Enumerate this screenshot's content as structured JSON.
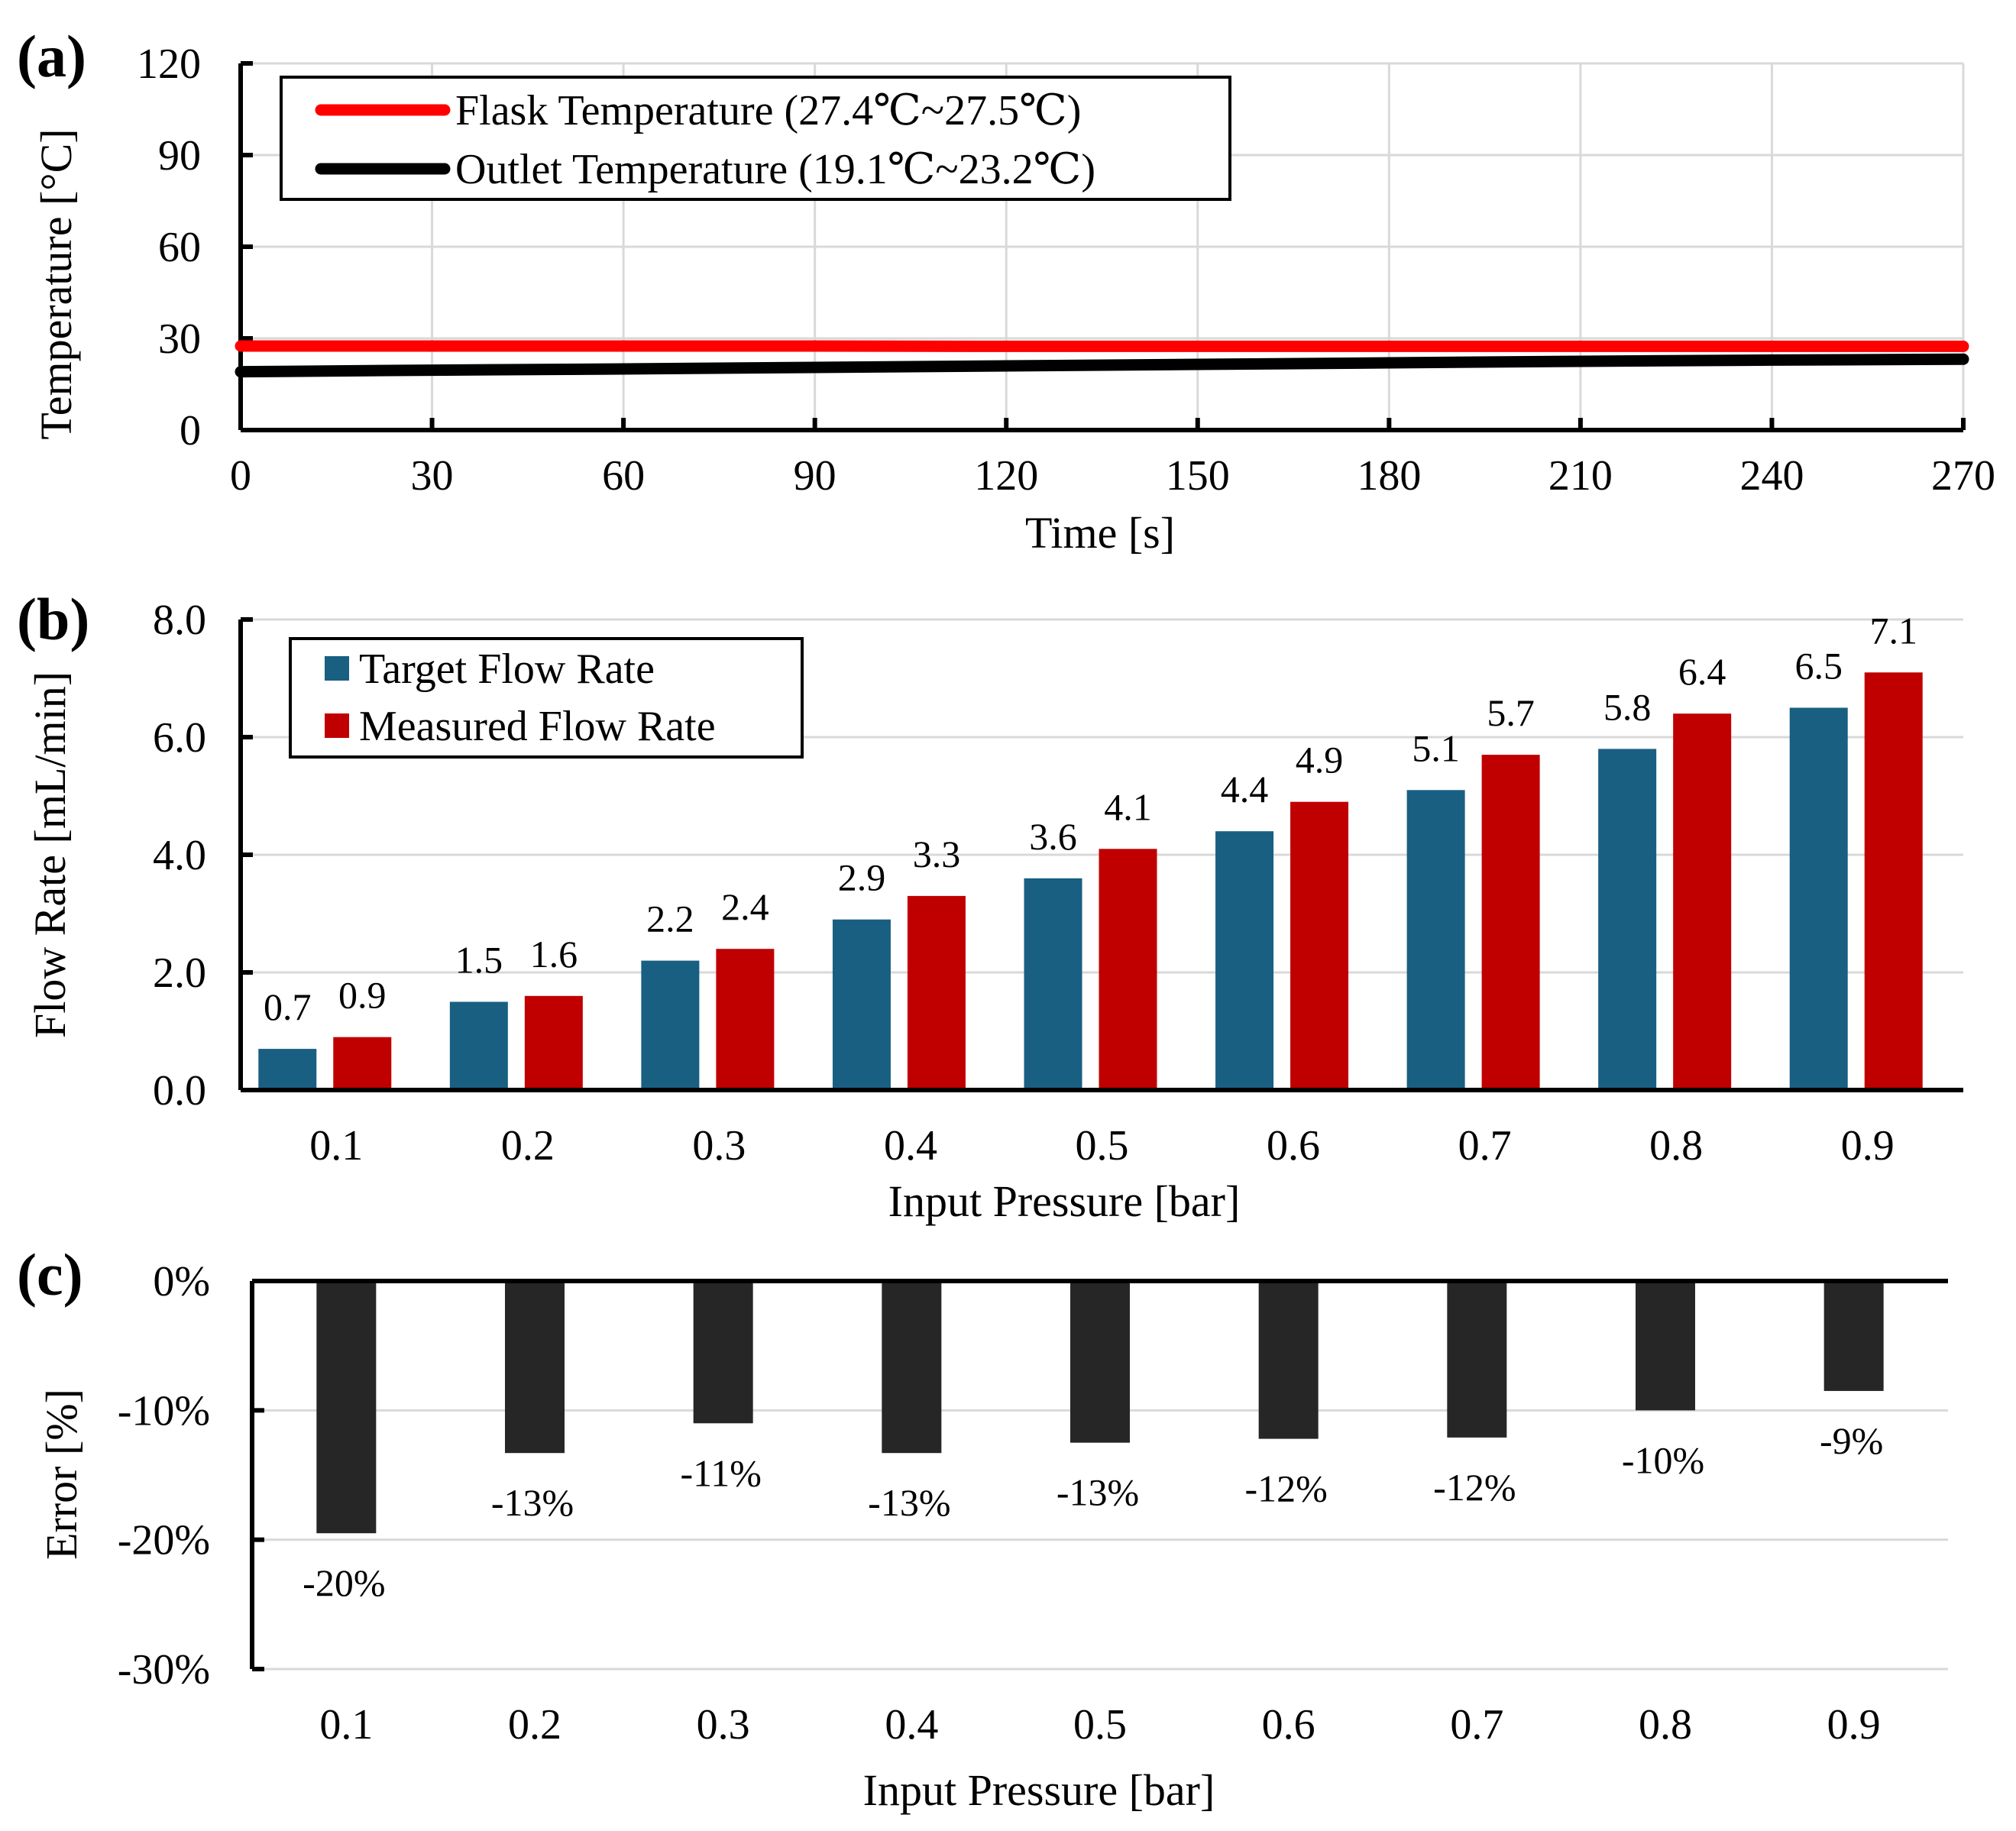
{
  "chart_data": [
    {
      "panel": "(a)",
      "type": "line",
      "xlabel": "Time [s]",
      "ylabel": "Temperature [°C]",
      "xlim": [
        0,
        270
      ],
      "ylim": [
        0,
        120
      ],
      "xticks": [
        "0",
        "30",
        "60",
        "90",
        "120",
        "150",
        "180",
        "210",
        "240",
        "270"
      ],
      "yticks": [
        "0",
        "30",
        "60",
        "90",
        "120"
      ],
      "grid": true,
      "legend_position": "top-left",
      "series": [
        {
          "name": "Flask Temperature (27.4℃~27.5℃)",
          "color": "#ff0000",
          "x": [
            0,
            30,
            60,
            90,
            120,
            150,
            180,
            210,
            240,
            270
          ],
          "values": [
            27.5,
            27.5,
            27.5,
            27.5,
            27.4,
            27.4,
            27.4,
            27.4,
            27.4,
            27.4
          ]
        },
        {
          "name": "Outlet Temperature (19.1℃~23.2℃)",
          "color": "#000000",
          "x": [
            0,
            30,
            60,
            90,
            120,
            150,
            180,
            210,
            240,
            270
          ],
          "values": [
            19.1,
            19.6,
            20.0,
            20.5,
            21.0,
            21.5,
            22.0,
            22.5,
            22.9,
            23.2
          ]
        }
      ]
    },
    {
      "panel": "(b)",
      "type": "bar",
      "xlabel": "Input Pressure [bar]",
      "ylabel": "Flow Rate [mL/min]",
      "ylim": [
        0,
        8
      ],
      "yticks": [
        "0.0",
        "2.0",
        "4.0",
        "6.0",
        "8.0"
      ],
      "grid": true,
      "legend_position": "top-left",
      "categories": [
        "0.1",
        "0.2",
        "0.3",
        "0.4",
        "0.5",
        "0.6",
        "0.7",
        "0.8",
        "0.9"
      ],
      "series": [
        {
          "name": "Target Flow Rate",
          "color": "#195f82",
          "values": [
            0.7,
            1.5,
            2.2,
            2.9,
            3.6,
            4.4,
            5.1,
            5.8,
            6.5
          ],
          "labels": [
            "0.7",
            "1.5",
            "2.2",
            "2.9",
            "3.6",
            "4.4",
            "5.1",
            "5.8",
            "6.5"
          ]
        },
        {
          "name": "Measured Flow Rate",
          "color": "#c00000",
          "values": [
            0.9,
            1.6,
            2.4,
            3.3,
            4.1,
            4.9,
            5.7,
            6.4,
            7.1
          ],
          "labels": [
            "0.9",
            "1.6",
            "2.4",
            "3.3",
            "4.1",
            "4.9",
            "5.7",
            "6.4",
            "7.1"
          ]
        }
      ]
    },
    {
      "panel": "(c)",
      "type": "bar",
      "xlabel": "Input Pressure [bar]",
      "ylabel": "Error [%]",
      "ylim": [
        -30,
        0
      ],
      "yticks": [
        "0%",
        "-10%",
        "-20%",
        "-30%"
      ],
      "grid": true,
      "categories": [
        "0.1",
        "0.2",
        "0.3",
        "0.4",
        "0.5",
        "0.6",
        "0.7",
        "0.8",
        "0.9"
      ],
      "series": [
        {
          "name": "Error",
          "color": "#262626",
          "values": [
            -19.5,
            -13.3,
            -11.0,
            -13.3,
            -12.5,
            -12.2,
            -12.1,
            -10.0,
            -8.5
          ],
          "labels": [
            "-20%",
            "-13%",
            "-11%",
            "-13%",
            "-13%",
            "-12%",
            "-12%",
            "-10%",
            "-9%"
          ]
        }
      ]
    }
  ]
}
